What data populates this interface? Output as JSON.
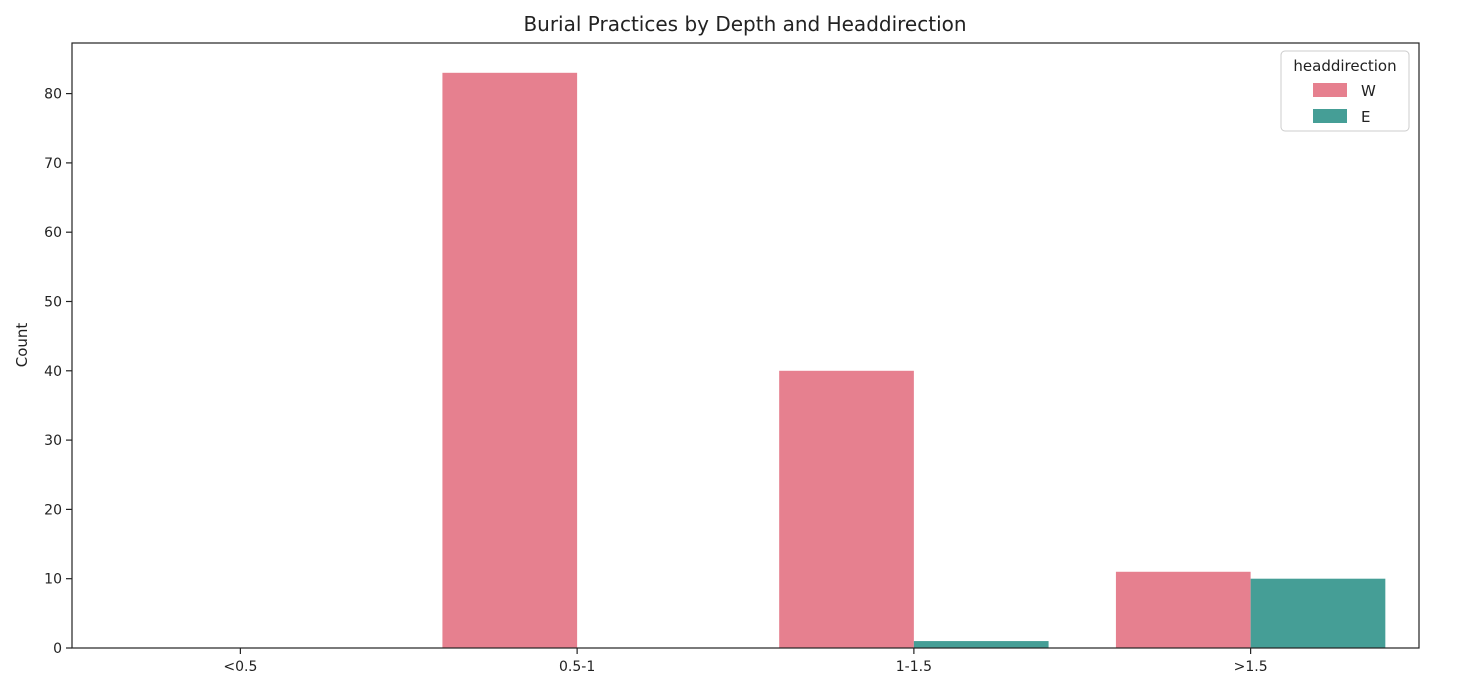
{
  "chart_data": {
    "type": "bar",
    "title": "Burial Practices by Depth and Headdirection",
    "xlabel": "",
    "ylabel": "Count",
    "categories": [
      "<0.5",
      "0.5-1",
      "1-1.5",
      ">1.5"
    ],
    "series": [
      {
        "name": "W",
        "color": "#e6808f",
        "values": [
          0,
          83,
          40,
          11
        ]
      },
      {
        "name": "E",
        "color": "#459e96",
        "values": [
          0,
          0,
          1,
          10
        ]
      }
    ],
    "ylim": [
      0,
      87.3
    ],
    "yticks": [
      0,
      10,
      20,
      30,
      40,
      50,
      60,
      70,
      80
    ],
    "grid": false,
    "legend": {
      "title": "headdirection",
      "placement": "top-right"
    }
  }
}
